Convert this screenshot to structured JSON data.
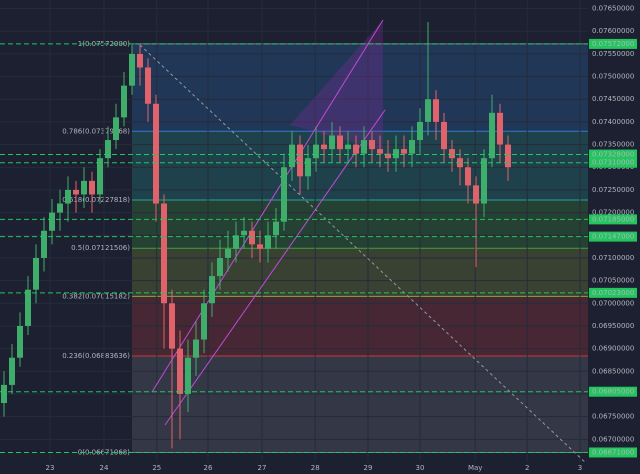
{
  "chart_data": {
    "type": "candlestick",
    "open": [
      0.0678,
      0.0682,
      0.0688,
      0.0695,
      0.0703,
      0.071,
      0.0716,
      0.072,
      0.0722,
      0.0725,
      0.0724,
      0.0727,
      0.0724,
      0.0732,
      0.0736,
      0.0741,
      0.0748,
      0.0755,
      0.0752,
      0.0744,
      0.0722,
      0.07,
      0.069,
      0.068,
      0.0688,
      0.0692,
      0.07,
      0.0706,
      0.071,
      0.0712,
      0.0715,
      0.0716,
      0.0713,
      0.0712,
      0.0715,
      0.0718,
      0.073,
      0.0735,
      0.0728,
      0.0732,
      0.0735,
      0.0734,
      0.0737,
      0.0734,
      0.0735,
      0.0733,
      0.0736,
      0.0734,
      0.0733,
      0.0732,
      0.0734,
      0.0733,
      0.0736,
      0.074,
      0.0745,
      0.074,
      0.0734,
      0.0732,
      0.073,
      0.0726,
      0.0722,
      0.0732,
      0.0742,
      0.0735
    ],
    "high": [
      0.0685,
      0.0691,
      0.0698,
      0.0706,
      0.0713,
      0.0719,
      0.0723,
      0.0725,
      0.0728,
      0.0727,
      0.073,
      0.0729,
      0.0734,
      0.0739,
      0.0744,
      0.0751,
      0.0757,
      0.0757,
      0.0754,
      0.0746,
      0.0724,
      0.0703,
      0.0694,
      0.0692,
      0.0696,
      0.0703,
      0.0709,
      0.0714,
      0.0716,
      0.0718,
      0.0719,
      0.0718,
      0.0716,
      0.0718,
      0.0721,
      0.0733,
      0.0738,
      0.0737,
      0.0735,
      0.0739,
      0.0738,
      0.074,
      0.0739,
      0.0738,
      0.0737,
      0.0739,
      0.0738,
      0.0737,
      0.0736,
      0.0737,
      0.0737,
      0.0739,
      0.0743,
      0.0762,
      0.0747,
      0.0742,
      0.0736,
      0.0734,
      0.0732,
      0.0728,
      0.0734,
      0.0746,
      0.0744,
      0.0737
    ],
    "low": [
      0.0675,
      0.068,
      0.0686,
      0.0693,
      0.07,
      0.0707,
      0.0713,
      0.0716,
      0.0718,
      0.072,
      0.0721,
      0.072,
      0.0722,
      0.073,
      0.0734,
      0.0739,
      0.0746,
      0.0748,
      0.074,
      0.0718,
      0.069,
      0.0668,
      0.067,
      0.0676,
      0.0684,
      0.0689,
      0.0697,
      0.0703,
      0.0707,
      0.0709,
      0.0712,
      0.071,
      0.0709,
      0.0709,
      0.0712,
      0.0716,
      0.0727,
      0.0724,
      0.0725,
      0.0729,
      0.0731,
      0.0731,
      0.0731,
      0.0731,
      0.073,
      0.073,
      0.0731,
      0.073,
      0.0729,
      0.0729,
      0.073,
      0.073,
      0.0733,
      0.0737,
      0.0736,
      0.0731,
      0.0729,
      0.0726,
      0.0722,
      0.0708,
      0.0719,
      0.073,
      0.0731,
      0.0727
    ],
    "close": [
      0.0682,
      0.0688,
      0.0695,
      0.0703,
      0.071,
      0.0716,
      0.072,
      0.0722,
      0.0725,
      0.0724,
      0.0727,
      0.0724,
      0.0732,
      0.0736,
      0.0741,
      0.0748,
      0.0755,
      0.0752,
      0.0744,
      0.0722,
      0.07,
      0.069,
      0.068,
      0.0688,
      0.0692,
      0.07,
      0.0706,
      0.071,
      0.0712,
      0.0715,
      0.0716,
      0.0713,
      0.0712,
      0.0715,
      0.0718,
      0.073,
      0.0735,
      0.0728,
      0.0732,
      0.0735,
      0.0734,
      0.0737,
      0.0734,
      0.0735,
      0.0733,
      0.0736,
      0.0734,
      0.0733,
      0.0732,
      0.0734,
      0.0733,
      0.0736,
      0.074,
      0.0745,
      0.074,
      0.0734,
      0.0732,
      0.073,
      0.0726,
      0.0722,
      0.0732,
      0.0742,
      0.0735,
      0.073
    ],
    "up_color": "#3fae6a",
    "down_color": "#e0636b",
    "ylim": [
      0.0665,
      0.0766
    ],
    "yticks": [
      {
        "value": 0.0765,
        "label": "0.07650000"
      },
      {
        "value": 0.076,
        "label": "0.07600000"
      },
      {
        "value": 0.0755,
        "label": "0.07550000"
      },
      {
        "value": 0.075,
        "label": "0.07500000"
      },
      {
        "value": 0.0745,
        "label": "0.07450000"
      },
      {
        "value": 0.074,
        "label": "0.07400000"
      },
      {
        "value": 0.0735,
        "label": "0.07350000"
      },
      {
        "value": 0.073,
        "label": "0.07300000"
      },
      {
        "value": 0.0725,
        "label": "0.07250000"
      },
      {
        "value": 0.072,
        "label": "0.07200000"
      },
      {
        "value": 0.0715,
        "label": "0.07150000"
      },
      {
        "value": 0.071,
        "label": "0.07100000"
      },
      {
        "value": 0.0705,
        "label": "0.07050000"
      },
      {
        "value": 0.07,
        "label": "0.07000000"
      },
      {
        "value": 0.0695,
        "label": "0.06950000"
      },
      {
        "value": 0.069,
        "label": "0.06900000"
      },
      {
        "value": 0.0685,
        "label": "0.06850000"
      },
      {
        "value": 0.068,
        "label": "0.06800000"
      },
      {
        "value": 0.0675,
        "label": "0.06750000"
      },
      {
        "value": 0.067,
        "label": "0.06700000"
      }
    ],
    "xlim": [
      0,
      73.5
    ],
    "xticks": [
      {
        "value": 6.25,
        "label": "23"
      },
      {
        "value": 13,
        "label": "24"
      },
      {
        "value": 19.6,
        "label": "25"
      },
      {
        "value": 26,
        "label": "26"
      },
      {
        "value": 32.75,
        "label": "27"
      },
      {
        "value": 39.4,
        "label": "28"
      },
      {
        "value": 46,
        "label": "29"
      },
      {
        "value": 52.5,
        "label": "30"
      },
      {
        "value": 59.4,
        "label": "May"
      },
      {
        "value": 65.9,
        "label": "2"
      },
      {
        "value": 72.5,
        "label": "3"
      }
    ],
    "fib_levels": [
      {
        "value": 0.07572,
        "label": "1(0.07572000)",
        "color": "#787b86"
      },
      {
        "value": 0.0737927,
        "label": "0.786(0.07379268)",
        "color": "#2f7bd0"
      },
      {
        "value": 0.07227818,
        "label": "0.618(0.07227818)",
        "color": "#27a39a"
      },
      {
        "value": 0.07121506,
        "label": "0.5(0.07121506)",
        "color": "#3da33d"
      },
      {
        "value": 0.07015182,
        "label": "0.382(0.07015182)",
        "color": "#8fa33a"
      },
      {
        "value": 0.06883636,
        "label": "0.236(0.06883636)",
        "color": "#c43b3b"
      },
      {
        "value": 0.06671068,
        "label": "0(0.06671068)",
        "color": "#787b86"
      }
    ],
    "price_lines": [
      {
        "value": 0.07572,
        "label": "0.07572000"
      },
      {
        "value": 0.07328,
        "label": "0.07328000"
      },
      {
        "value": 0.0731,
        "label": "0.07310000"
      },
      {
        "value": 0.07185,
        "label": "0.07185000"
      },
      {
        "value": 0.07147,
        "label": "0.07147000"
      },
      {
        "value": 0.07023,
        "label": "0.07023000"
      },
      {
        "value": 0.06805,
        "label": "0.06805000"
      },
      {
        "value": 0.06671,
        "label": "0.06671000"
      }
    ],
    "price_line_color": "#22c55e"
  }
}
